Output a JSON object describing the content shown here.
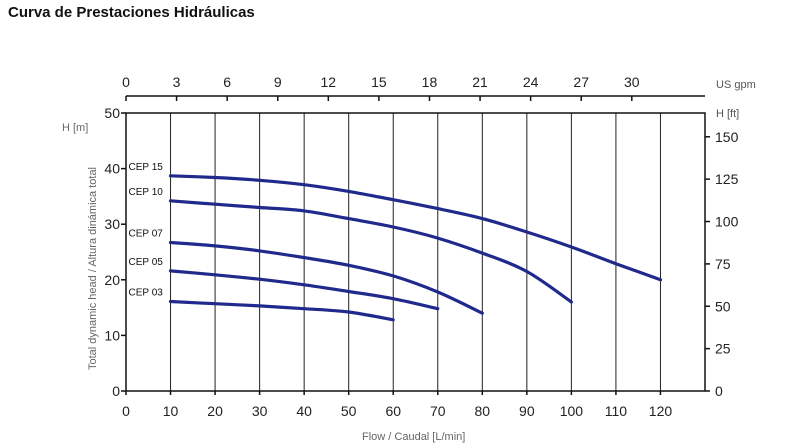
{
  "page": {
    "title": "Curva de Prestaciones Hidráulicas"
  },
  "chart_data": {
    "type": "line",
    "x_bottom": {
      "label": "Flow / Caudal [L/min]",
      "ticks": [
        0,
        10,
        20,
        30,
        40,
        50,
        60,
        70,
        80,
        90,
        100,
        110,
        120
      ],
      "range": [
        0,
        130
      ]
    },
    "x_top": {
      "unit": "US gpm",
      "ticks": [
        0,
        3,
        6,
        9,
        12,
        15,
        18,
        21,
        24,
        27,
        30
      ]
    },
    "y_left": {
      "unit": "H [m]",
      "label": "Total dynamic head / Altura dinámica total",
      "ticks": [
        0,
        10,
        20,
        30,
        40,
        50
      ],
      "range": [
        0,
        50
      ]
    },
    "y_right": {
      "unit": "H  [ft]",
      "ticks": [
        0,
        25,
        50,
        75,
        100,
        125,
        150
      ]
    },
    "grid": {
      "vertical": true,
      "horizontal": false
    },
    "line_color": "#1f2a8c",
    "series": [
      {
        "name": "CEP 15",
        "x": [
          10,
          20,
          30,
          40,
          50,
          60,
          70,
          80,
          90,
          100,
          110,
          120
        ],
        "y": [
          38.7,
          38.4,
          37.9,
          37.1,
          35.9,
          34.4,
          32.8,
          31.0,
          28.6,
          25.9,
          22.9,
          20.0
        ]
      },
      {
        "name": "CEP 10",
        "x": [
          10,
          20,
          30,
          40,
          50,
          60,
          70,
          80,
          90,
          100
        ],
        "y": [
          34.2,
          33.6,
          33.0,
          32.4,
          31.0,
          29.5,
          27.5,
          24.8,
          21.5,
          16.0
        ]
      },
      {
        "name": "CEP 07",
        "x": [
          10,
          20,
          30,
          40,
          50,
          60,
          70,
          80
        ],
        "y": [
          26.7,
          26.1,
          25.2,
          24.0,
          22.6,
          20.7,
          17.8,
          14.0
        ]
      },
      {
        "name": "CEP 05",
        "x": [
          10,
          20,
          30,
          40,
          50,
          60,
          70
        ],
        "y": [
          21.6,
          20.9,
          20.1,
          19.1,
          17.9,
          16.6,
          14.8
        ]
      },
      {
        "name": "CEP 03",
        "x": [
          10,
          20,
          30,
          40,
          50,
          60
        ],
        "y": [
          16.1,
          15.7,
          15.3,
          14.8,
          14.2,
          12.8
        ]
      }
    ]
  }
}
